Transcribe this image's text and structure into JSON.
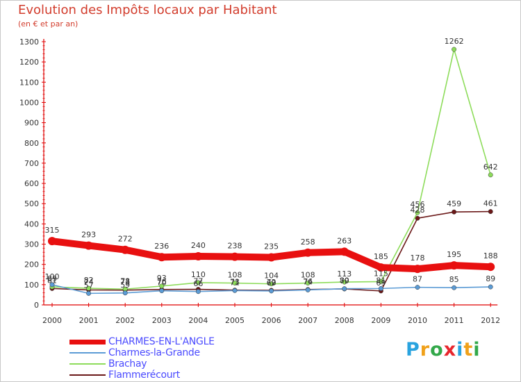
{
  "header": {
    "title": "Evolution des Impôts locaux par Habitant",
    "subtitle": "(en € et par an)"
  },
  "legend": {
    "items": [
      {
        "label": "CHARMES-EN-L'ANGLE",
        "color": "#e81010"
      },
      {
        "label": "Charmes-la-Grande",
        "color": "#5b9bd5"
      },
      {
        "label": "Brachay",
        "color": "#8ddc5a"
      },
      {
        "label": "Flammerécourt",
        "color": "#6b1818"
      }
    ]
  },
  "logo": {
    "letters": [
      "P",
      "r",
      "o",
      "x",
      "i",
      "t",
      "i"
    ],
    "colors": [
      "#29a3df",
      "#f0a11a",
      "#33a84a",
      "#e8262d",
      "#29a3df",
      "#f0a11a",
      "#33a84a"
    ]
  },
  "chart_data": {
    "type": "line",
    "title": "Evolution des Impôts locaux par Habitant",
    "subtitle": "(en € et par an)",
    "xlabel": "",
    "ylabel": "",
    "ylim": [
      0,
      1300
    ],
    "grid": false,
    "legend_position": "bottom-left",
    "x": [
      2000,
      2001,
      2002,
      2003,
      2004,
      2005,
      2006,
      2007,
      2008,
      2009,
      2010,
      2011,
      2012
    ],
    "y_ticks": [
      0,
      100,
      200,
      300,
      400,
      500,
      600,
      700,
      800,
      900,
      1000,
      1100,
      1200,
      1300
    ],
    "series": [
      {
        "name": "CHARMES-EN-L'ANGLE",
        "color": "#e81010",
        "values": [
          315,
          293,
          272,
          236,
          240,
          238,
          235,
          258,
          263,
          185,
          178,
          195,
          188
        ]
      },
      {
        "name": "Charmes-la-Grande",
        "color": "#5b9bd5",
        "values": [
          100,
          57,
          59,
          70,
          66,
          71,
          69,
          74,
          80,
          81,
          87,
          85,
          89
        ]
      },
      {
        "name": "Brachay",
        "color": "#8ddc5a",
        "values": [
          89,
          82,
          78,
          93,
          110,
          108,
          104,
          108,
          113,
          115,
          456,
          1262,
          642
        ]
      },
      {
        "name": "Flammerécourt",
        "color": "#6b1818",
        "values": [
          81,
          74,
          73,
          76,
          77,
          73,
          72,
          76,
          79,
          69,
          428,
          459,
          461
        ]
      }
    ]
  }
}
